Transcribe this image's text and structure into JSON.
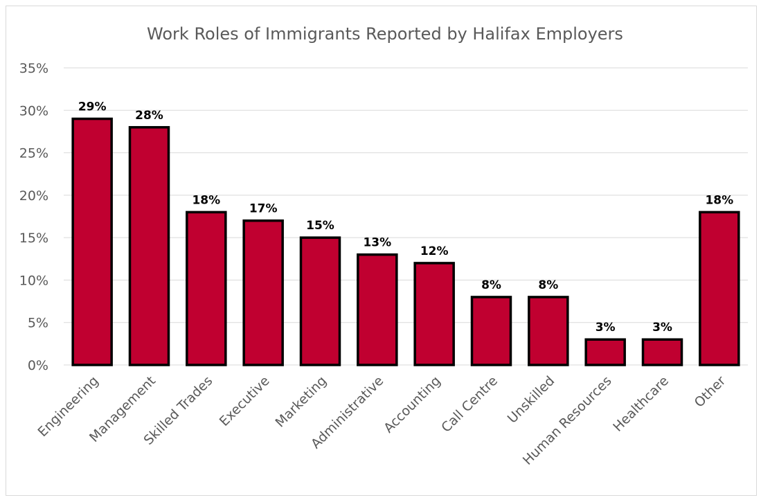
{
  "chart_data": {
    "type": "bar",
    "title": "Work Roles of Immigrants Reported by Halifax Employers",
    "xlabel": "",
    "ylabel": "",
    "categories": [
      "Engineering",
      "Management",
      "Skilled Trades",
      "Executive",
      "Marketing",
      "Administrative",
      "Accounting",
      "Call Centre",
      "Unskilled",
      "Human Resources",
      "Healthcare",
      "Other"
    ],
    "values": [
      29,
      28,
      18,
      17,
      15,
      13,
      12,
      8,
      8,
      3,
      3,
      18
    ],
    "data_labels": [
      "29%",
      "28%",
      "18%",
      "17%",
      "15%",
      "13%",
      "12%",
      "8%",
      "8%",
      "3%",
      "3%",
      "18%"
    ],
    "ylim": [
      0,
      35
    ],
    "yticks": [
      0,
      5,
      10,
      15,
      20,
      25,
      30,
      35
    ],
    "ytick_labels": [
      "0%",
      "5%",
      "10%",
      "15%",
      "20%",
      "25%",
      "30%",
      "35%"
    ],
    "grid": true,
    "legend": "none",
    "colors": {
      "bar_fill": "#c00030",
      "bar_stroke": "#000000",
      "grid": "#d9d9d9"
    }
  }
}
